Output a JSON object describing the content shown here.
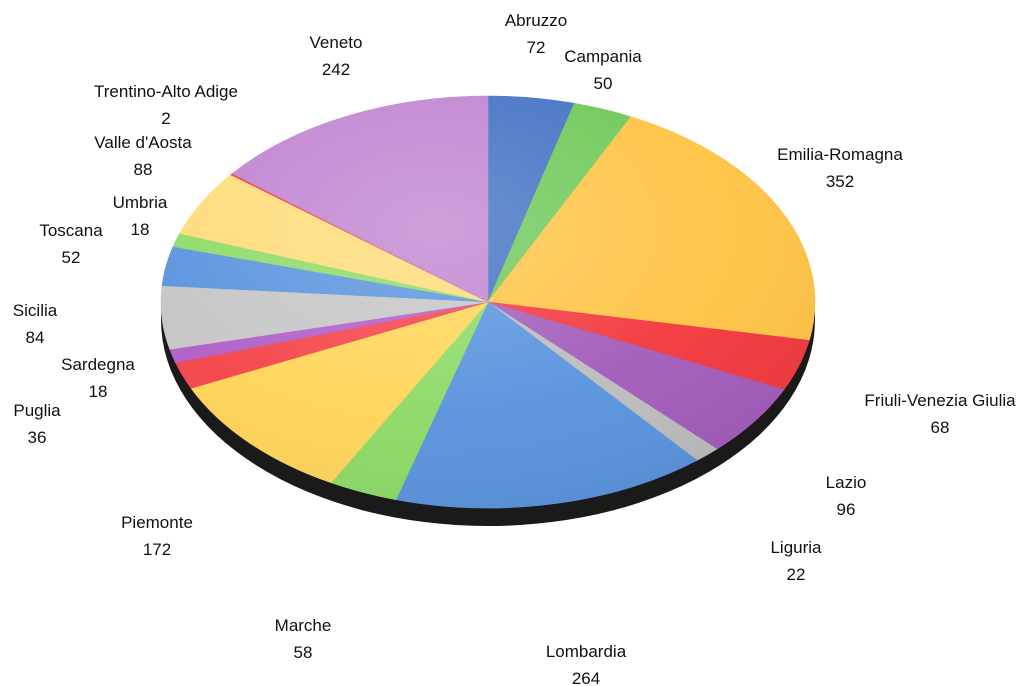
{
  "chart_data": {
    "type": "pie",
    "title": "",
    "slices": [
      {
        "label": "Abruzzo",
        "value": 72,
        "color": "#4472C4"
      },
      {
        "label": "Campania",
        "value": 50,
        "color": "#70C95A"
      },
      {
        "label": "Emilia-Romagna",
        "value": 352,
        "color": "#FFC447"
      },
      {
        "label": "Friuli-Venezia Giulia",
        "value": 68,
        "color": "#F23A3F"
      },
      {
        "label": "Lazio",
        "value": 96,
        "color": "#A35DBB"
      },
      {
        "label": "Liguria",
        "value": 22,
        "color": "#BDBDBD"
      },
      {
        "label": "Lombardia",
        "value": 264,
        "color": "#5A94DE"
      },
      {
        "label": "Marche",
        "value": 58,
        "color": "#8EDB68"
      },
      {
        "label": "Piemonte",
        "value": 172,
        "color": "#FFD55A"
      },
      {
        "label": "Puglia",
        "value": 36,
        "color": "#F4464B"
      },
      {
        "label": "Sardegna",
        "value": 18,
        "color": "#B160C8"
      },
      {
        "label": "Sicilia",
        "value": 84,
        "color": "#C6C6C6"
      },
      {
        "label": "Toscana",
        "value": 52,
        "color": "#5A94DE"
      },
      {
        "label": "Umbria",
        "value": 18,
        "color": "#8EDB68"
      },
      {
        "label": "Valle d'Aosta",
        "value": 88,
        "color": "#FFDC7A"
      },
      {
        "label": "Trentino-Alto Adige",
        "value": 2,
        "color": "#F23A3F"
      },
      {
        "label": "Veneto",
        "value": 242,
        "color": "#C184D1"
      }
    ]
  }
}
